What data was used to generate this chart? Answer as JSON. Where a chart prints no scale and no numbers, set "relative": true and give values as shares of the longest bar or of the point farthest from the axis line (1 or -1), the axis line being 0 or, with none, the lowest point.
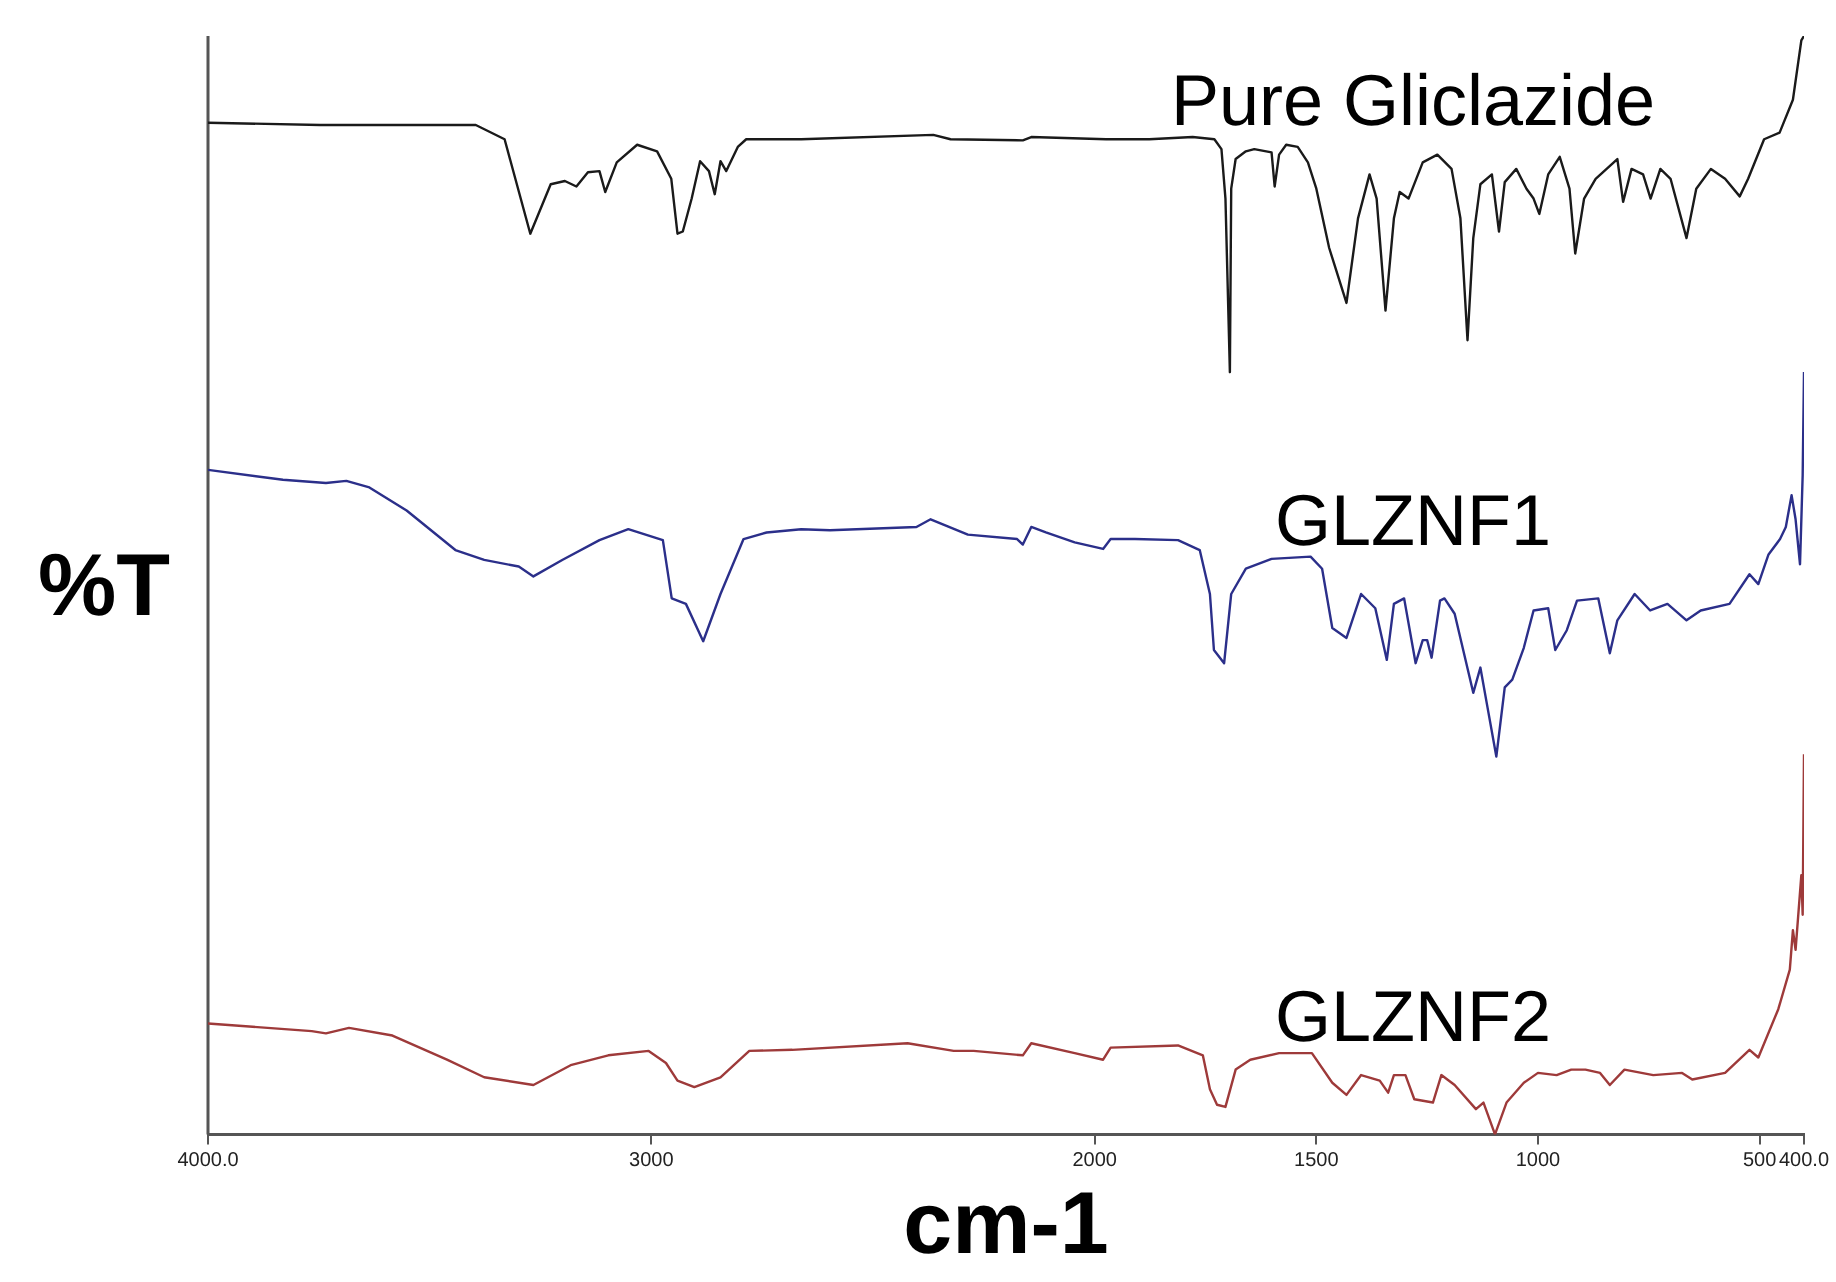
{
  "chart_data": {
    "type": "line",
    "xlabel": "cm-1",
    "ylabel": "%T",
    "relative": true,
    "grid": false,
    "xlim": [
      4000,
      400
    ],
    "xticks": [
      {
        "value": 4000,
        "label": "4000.0"
      },
      3000,
      2000,
      1500,
      1000,
      500,
      {
        "value": 400,
        "label": "400.0"
      }
    ],
    "series": [
      {
        "name": "Pure Gliclazide",
        "color": "#1a1a1a",
        "x": [
          4000,
          3747,
          3396,
          3331,
          3273,
          3227,
          3195,
          3169,
          3143,
          3117,
          3104,
          3078,
          3032,
          2987,
          2955,
          2941,
          2929,
          2909,
          2890,
          2870,
          2857,
          2844,
          2831,
          2805,
          2786,
          2662,
          2364,
          2325,
          2162,
          2143,
          1974,
          1877,
          1779,
          1730,
          1714,
          1705,
          1695,
          1692,
          1682,
          1659,
          1640,
          1601,
          1594,
          1584,
          1568,
          1542,
          1519,
          1500,
          1471,
          1432,
          1406,
          1380,
          1364,
          1344,
          1325,
          1312,
          1292,
          1260,
          1227,
          1195,
          1175,
          1159,
          1146,
          1130,
          1104,
          1088,
          1075,
          1049,
          1026,
          1010,
          997,
          977,
          951,
          929,
          916,
          896,
          870,
          821,
          808,
          789,
          763,
          746,
          724,
          701,
          665,
          643,
          610,
          578,
          545,
          526,
          490,
          455,
          425,
          406,
          400
        ],
        "values": [
          0.921,
          0.919,
          0.919,
          0.906,
          0.82,
          0.865,
          0.868,
          0.863,
          0.876,
          0.877,
          0.858,
          0.885,
          0.901,
          0.895,
          0.87,
          0.82,
          0.822,
          0.852,
          0.886,
          0.877,
          0.856,
          0.886,
          0.877,
          0.899,
          0.906,
          0.906,
          0.91,
          0.906,
          0.905,
          0.908,
          0.906,
          0.906,
          0.908,
          0.906,
          0.897,
          0.852,
          0.694,
          0.861,
          0.888,
          0.895,
          0.897,
          0.894,
          0.863,
          0.892,
          0.901,
          0.899,
          0.885,
          0.861,
          0.807,
          0.757,
          0.834,
          0.874,
          0.852,
          0.75,
          0.834,
          0.858,
          0.852,
          0.885,
          0.892,
          0.879,
          0.834,
          0.723,
          0.816,
          0.865,
          0.874,
          0.822,
          0.867,
          0.879,
          0.861,
          0.852,
          0.838,
          0.874,
          0.89,
          0.861,
          0.802,
          0.852,
          0.87,
          0.888,
          0.849,
          0.879,
          0.874,
          0.852,
          0.879,
          0.87,
          0.816,
          0.861,
          0.879,
          0.87,
          0.854,
          0.87,
          0.906,
          0.912,
          0.942,
          0.996,
          1.0
        ]
      },
      {
        "name": "GLZNF1",
        "color": "#2b2f8a",
        "x": [
          4000,
          3831,
          3734,
          3688,
          3636,
          3552,
          3442,
          3377,
          3299,
          3266,
          3201,
          3117,
          3052,
          2974,
          2954,
          2922,
          2883,
          2844,
          2792,
          2740,
          2662,
          2597,
          2402,
          2370,
          2286,
          2175,
          2162,
          2143,
          2110,
          2045,
          1981,
          1964,
          1909,
          1812,
          1763,
          1740,
          1731,
          1708,
          1692,
          1659,
          1601,
          1513,
          1487,
          1464,
          1432,
          1399,
          1367,
          1341,
          1325,
          1302,
          1276,
          1260,
          1250,
          1240,
          1221,
          1211,
          1188,
          1146,
          1130,
          1114,
          1094,
          1075,
          1058,
          1032,
          1010,
          977,
          961,
          935,
          912,
          864,
          838,
          821,
          782,
          747,
          708,
          665,
          633,
          568,
          523,
          503,
          480,
          454,
          441,
          428,
          419,
          409,
          403,
          400
        ],
        "values": [
          0.605,
          0.596,
          0.593,
          0.595,
          0.589,
          0.568,
          0.532,
          0.523,
          0.517,
          0.508,
          0.523,
          0.541,
          0.551,
          0.541,
          0.488,
          0.483,
          0.449,
          0.492,
          0.542,
          0.548,
          0.551,
          0.55,
          0.553,
          0.56,
          0.546,
          0.542,
          0.537,
          0.553,
          0.548,
          0.539,
          0.533,
          0.542,
          0.542,
          0.541,
          0.532,
          0.492,
          0.441,
          0.429,
          0.492,
          0.515,
          0.524,
          0.526,
          0.515,
          0.461,
          0.452,
          0.492,
          0.479,
          0.432,
          0.483,
          0.488,
          0.429,
          0.45,
          0.45,
          0.434,
          0.486,
          0.488,
          0.474,
          0.402,
          0.425,
          0.389,
          0.344,
          0.407,
          0.414,
          0.443,
          0.477,
          0.479,
          0.441,
          0.459,
          0.486,
          0.488,
          0.438,
          0.468,
          0.492,
          0.477,
          0.483,
          0.468,
          0.477,
          0.483,
          0.51,
          0.501,
          0.528,
          0.542,
          0.553,
          0.582,
          0.56,
          0.519,
          0.6,
          0.694
        ]
      },
      {
        "name": "GLZNF2",
        "color": "#9e3a3a",
        "x": [
          4000,
          3766,
          3734,
          3682,
          3584,
          3461,
          3377,
          3266,
          3182,
          3097,
          3006,
          2967,
          2941,
          2903,
          2844,
          2779,
          2682,
          2422,
          2318,
          2273,
          2162,
          2143,
          2045,
          1981,
          1964,
          1812,
          1756,
          1740,
          1724,
          1705,
          1682,
          1649,
          1584,
          1510,
          1464,
          1432,
          1399,
          1357,
          1338,
          1325,
          1299,
          1279,
          1237,
          1218,
          1188,
          1140,
          1123,
          1097,
          1071,
          1032,
          1000,
          958,
          925,
          893,
          860,
          838,
          805,
          740,
          675,
          652,
          578,
          523,
          503,
          458,
          432,
          425,
          419,
          406,
          403,
          400
        ],
        "values": [
          0.101,
          0.094,
          0.092,
          0.097,
          0.09,
          0.068,
          0.052,
          0.045,
          0.063,
          0.072,
          0.076,
          0.065,
          0.049,
          0.043,
          0.052,
          0.076,
          0.077,
          0.083,
          0.076,
          0.076,
          0.072,
          0.083,
          0.074,
          0.068,
          0.079,
          0.081,
          0.072,
          0.041,
          0.027,
          0.025,
          0.059,
          0.068,
          0.074,
          0.074,
          0.047,
          0.036,
          0.054,
          0.049,
          0.038,
          0.054,
          0.054,
          0.032,
          0.029,
          0.054,
          0.045,
          0.023,
          0.029,
          0.0,
          0.029,
          0.047,
          0.056,
          0.054,
          0.059,
          0.059,
          0.056,
          0.045,
          0.059,
          0.054,
          0.056,
          0.05,
          0.056,
          0.077,
          0.07,
          0.114,
          0.15,
          0.186,
          0.168,
          0.236,
          0.2,
          0.346
        ]
      }
    ]
  }
}
